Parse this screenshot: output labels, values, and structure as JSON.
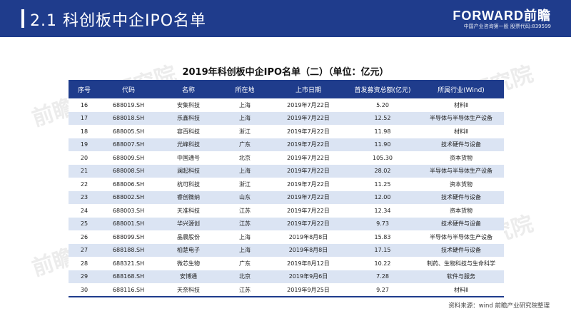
{
  "header": {
    "title": "2.1 科创板中企IPO名单",
    "brand_name": "FORWARD前瞻",
    "brand_tagline": "中国产业咨询第一股 股票代码:839599"
  },
  "watermark_text": "前瞻产业研究院",
  "table": {
    "title": "2019年科创板中企IPO名单（二）（单位：亿元）",
    "columns": [
      "序号",
      "代码",
      "名称",
      "所在地",
      "上市日期",
      "首发募资总额(亿元)",
      "所属行业(Wind)"
    ],
    "rows": [
      [
        "16",
        "688019.SH",
        "安集科技",
        "上海",
        "2019年7月22日",
        "5.20",
        "材料Ⅱ"
      ],
      [
        "17",
        "688018.SH",
        "乐鑫科技",
        "上海",
        "2019年7月22日",
        "12.52",
        "半导体与半导体生产设备"
      ],
      [
        "18",
        "688005.SH",
        "容百科技",
        "浙江",
        "2019年7月22日",
        "11.98",
        "材料Ⅱ"
      ],
      [
        "19",
        "688007.SH",
        "光峰科技",
        "广东",
        "2019年7月22日",
        "11.90",
        "技术硬件与设备"
      ],
      [
        "20",
        "688009.SH",
        "中国通号",
        "北京",
        "2019年7月22日",
        "105.30",
        "资本货物"
      ],
      [
        "21",
        "688008.SH",
        "澜起科技",
        "上海",
        "2019年7月22日",
        "28.02",
        "半导体与半导体生产设备"
      ],
      [
        "22",
        "688006.SH",
        "杭可科技",
        "浙江",
        "2019年7月22日",
        "11.25",
        "资本货物"
      ],
      [
        "23",
        "688002.SH",
        "睿创微纳",
        "山东",
        "2019年7月22日",
        "12.00",
        "技术硬件与设备"
      ],
      [
        "24",
        "688003.SH",
        "天准科技",
        "江苏",
        "2019年7月22日",
        "12.34",
        "资本货物"
      ],
      [
        "25",
        "688001.SH",
        "华兴源创",
        "江苏",
        "2019年7月22日",
        "9.73",
        "技术硬件与设备"
      ],
      [
        "26",
        "688099.SH",
        "晶晨股份",
        "上海",
        "2019年8月8日",
        "15.83",
        "半导体与半导体生产设备"
      ],
      [
        "27",
        "688188.SH",
        "柏楚电子",
        "上海",
        "2019年8月8日",
        "17.15",
        "技术硬件与设备"
      ],
      [
        "28",
        "688321.SH",
        "微芯生物",
        "广东",
        "2019年8月12日",
        "10.22",
        "制药、生物科技与生命科学"
      ],
      [
        "29",
        "688168.SH",
        "安博通",
        "北京",
        "2019年9月6日",
        "7.28",
        "软件与服务"
      ],
      [
        "30",
        "688116.SH",
        "天奈科技",
        "江苏",
        "2019年9月25日",
        "9.27",
        "材料Ⅱ"
      ]
    ]
  },
  "source": "资料来源：wind 前瞻产业研究院整理",
  "colors": {
    "accent": "#1f3c8c",
    "row_stripe": "#dbe4f3"
  }
}
